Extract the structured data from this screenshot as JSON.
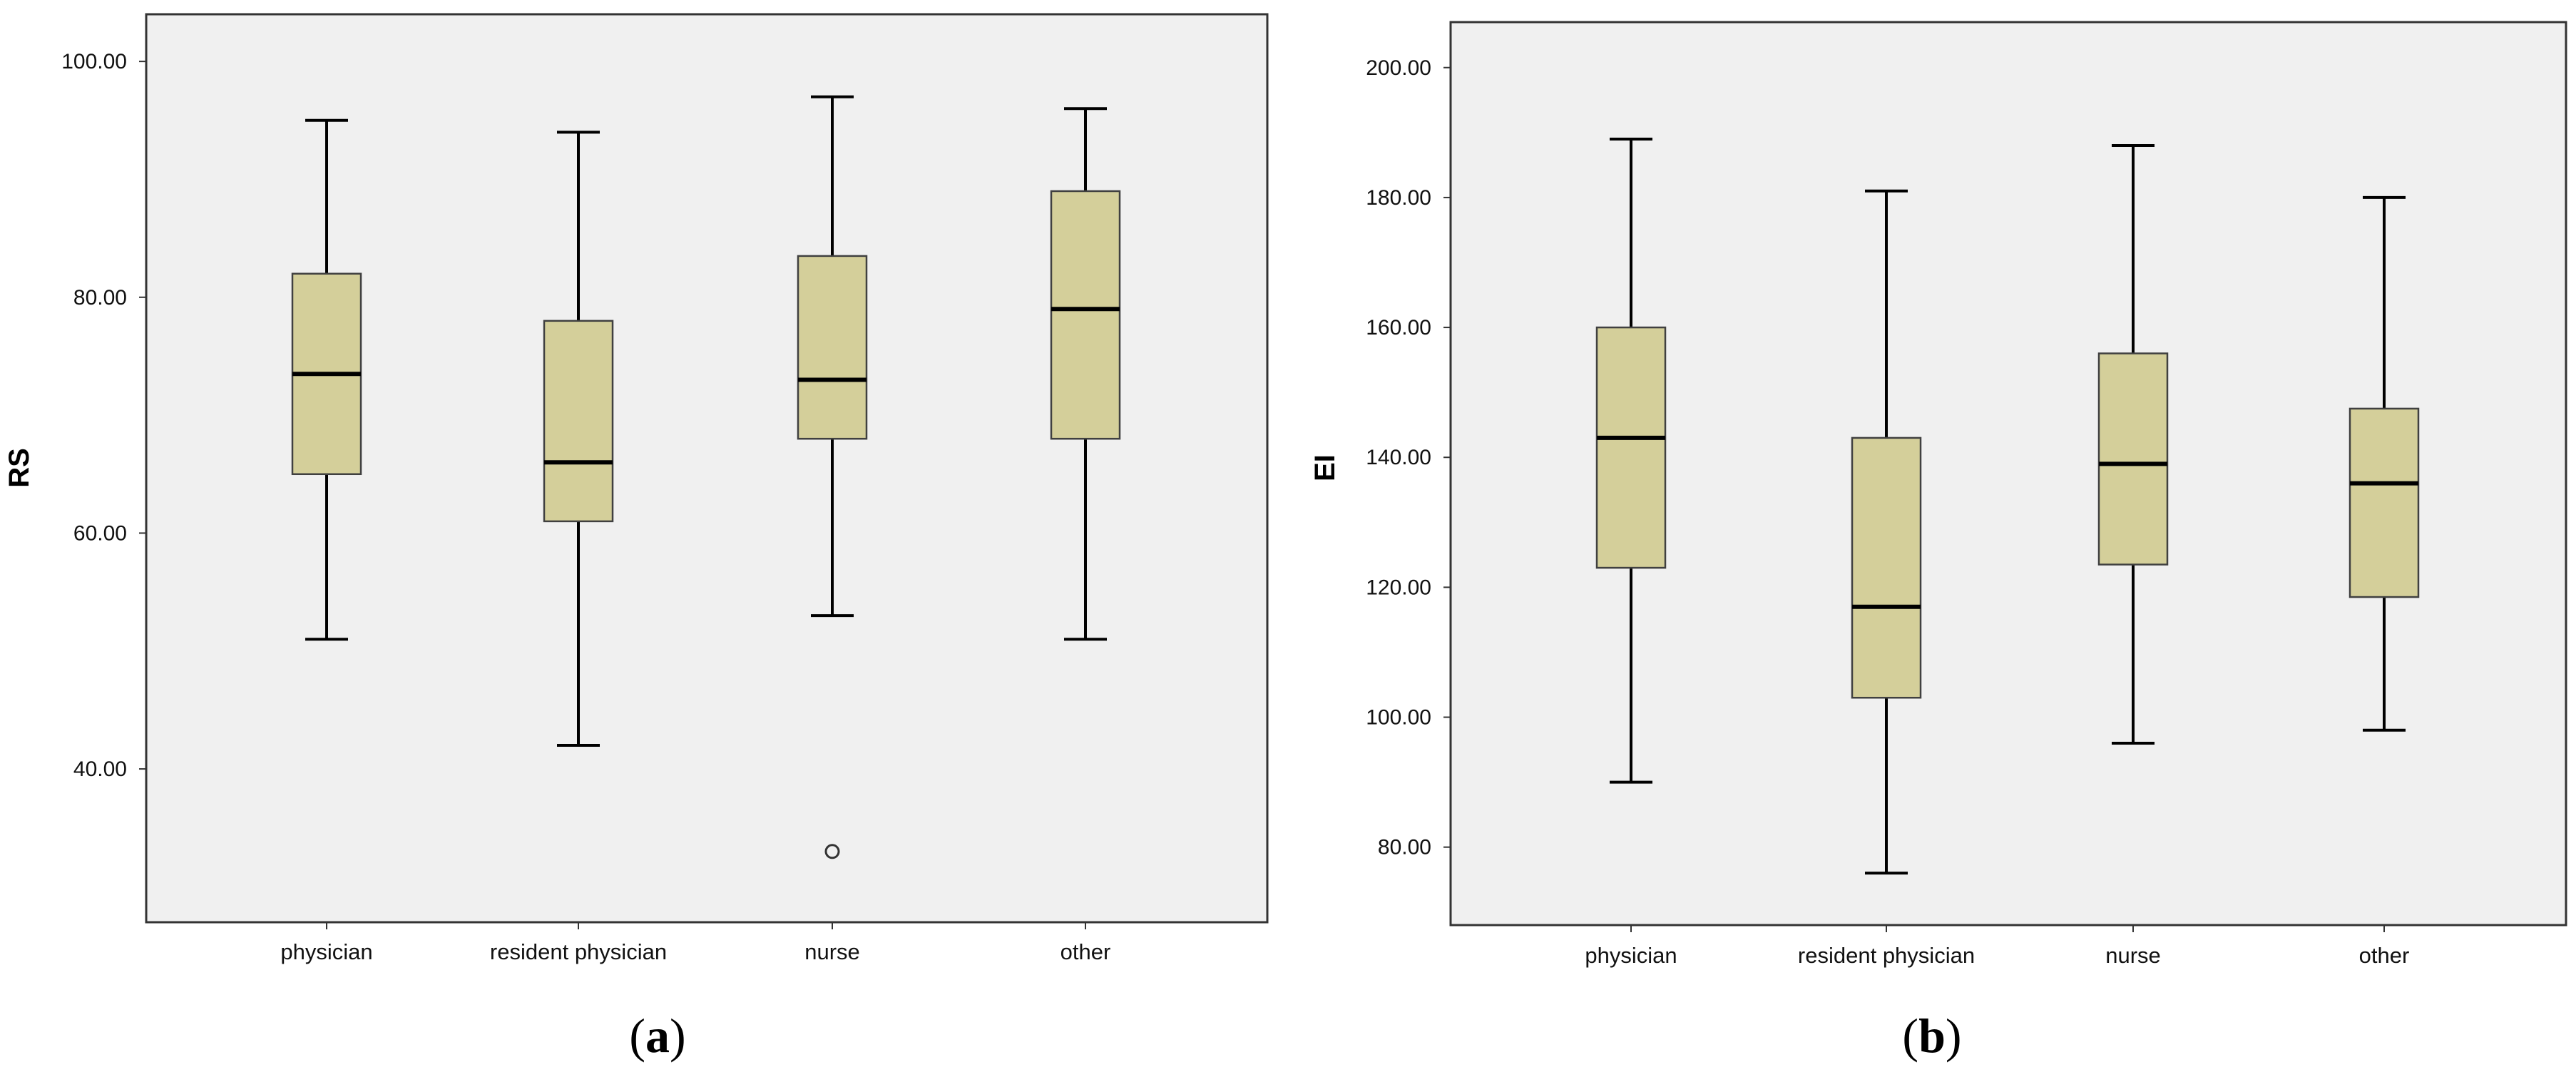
{
  "chart_data": [
    {
      "type": "boxplot",
      "panel": "a",
      "caption": {
        "open": "(",
        "letter": "a",
        "close": ")"
      },
      "ylabel": "RS",
      "xlabel": "",
      "categories": [
        "physician",
        "resident physician",
        "nurse",
        "other"
      ],
      "ylim": [
        27,
        104
      ],
      "yticks": [
        40,
        60,
        80,
        100
      ],
      "ytick_labels": [
        "40.00",
        "60.00",
        "80.00",
        "100.00"
      ],
      "boxes": [
        {
          "category": "physician",
          "min": 51,
          "q1": 65,
          "median": 73.5,
          "q3": 82,
          "max": 95,
          "outliers": []
        },
        {
          "category": "resident physician",
          "min": 42,
          "q1": 61,
          "median": 66,
          "q3": 78,
          "max": 94,
          "outliers": []
        },
        {
          "category": "nurse",
          "min": 53,
          "q1": 68,
          "median": 73,
          "q3": 83.5,
          "max": 97,
          "outliers": [
            33
          ]
        },
        {
          "category": "other",
          "min": 51,
          "q1": 68,
          "median": 79,
          "q3": 89,
          "max": 96,
          "outliers": []
        }
      ],
      "grid": false
    },
    {
      "type": "boxplot",
      "panel": "b",
      "caption": {
        "open": "(",
        "letter": "b",
        "close": ")"
      },
      "ylabel": "EI",
      "xlabel": "",
      "categories": [
        "physician",
        "resident physician",
        "nurse",
        "other"
      ],
      "ylim": [
        68,
        207
      ],
      "yticks": [
        80,
        100,
        120,
        140,
        160,
        180,
        200
      ],
      "ytick_labels": [
        "80.00",
        "100.00",
        "120.00",
        "140.00",
        "160.00",
        "180.00",
        "200.00"
      ],
      "boxes": [
        {
          "category": "physician",
          "min": 90,
          "q1": 123,
          "median": 143,
          "q3": 160,
          "max": 189,
          "outliers": []
        },
        {
          "category": "resident physician",
          "min": 76,
          "q1": 103,
          "median": 117,
          "q3": 143,
          "max": 181,
          "outliers": []
        },
        {
          "category": "nurse",
          "min": 96,
          "q1": 123.5,
          "median": 139,
          "q3": 156,
          "max": 188,
          "outliers": []
        },
        {
          "category": "other",
          "min": 98,
          "q1": 118.5,
          "median": 136,
          "q3": 147.5,
          "max": 180,
          "outliers": []
        }
      ],
      "grid": false
    }
  ],
  "colors": {
    "plot_background": "#f0f0f0",
    "box_fill": "#d4cf9a",
    "box_stroke": "#404040",
    "median": "#000000",
    "whisker": "#000000",
    "frame": "#333333",
    "outlier_stroke": "#333333"
  }
}
